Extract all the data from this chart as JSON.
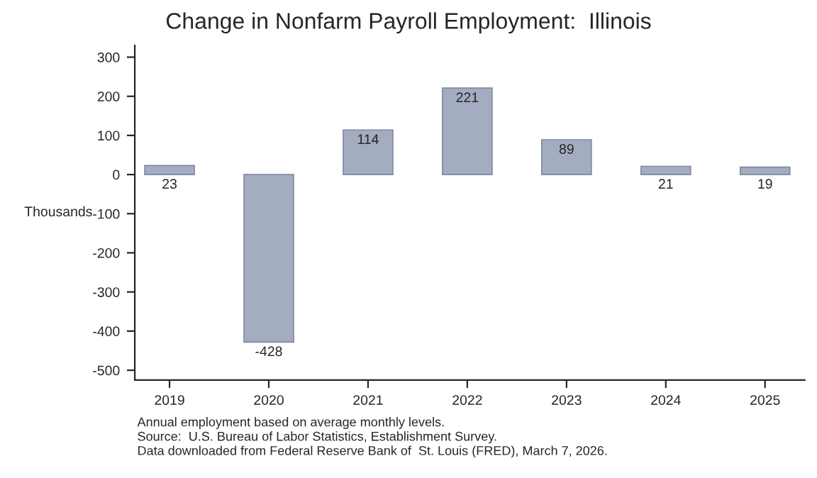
{
  "chart_data": {
    "type": "bar",
    "title": "Change in Nonfarm Payroll Employment:  Illinois",
    "ylabel": "Thousands",
    "categories": [
      "2019",
      "2020",
      "2021",
      "2022",
      "2023",
      "2024",
      "2025"
    ],
    "values": [
      23,
      -428,
      114,
      221,
      89,
      21,
      19
    ],
    "color": "#a3acc0",
    "ylim": [
      -525,
      330
    ],
    "yticks": [
      -500,
      -400,
      -300,
      -200,
      -100,
      0,
      100,
      200,
      300
    ],
    "data_labels": true,
    "grid": false,
    "legend": false,
    "annotations": [
      "Annual employment based on average monthly levels.",
      "Source:  U.S. Bureau of Labor Statistics, Establishment Survey.",
      "Data downloaded from Federal Reserve Bank of  St. Louis (FRED), March 7, 2026."
    ]
  }
}
